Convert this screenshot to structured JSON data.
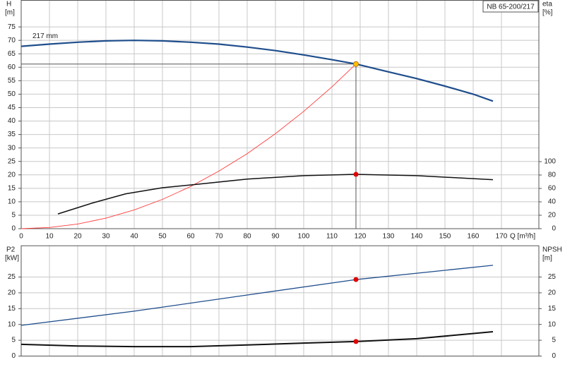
{
  "chart_data": [
    {
      "type": "line",
      "title": "NB 65-200/217",
      "x_label": "Q [m³/h]",
      "y_label": "H",
      "y_unit": "[m]",
      "y2_label": "eta",
      "y2_unit": "[%]",
      "xlim": [
        0,
        183.25
      ],
      "ylim": [
        0,
        85
      ],
      "y2lim": [
        0,
        341
      ],
      "xticks": [
        0,
        10,
        20,
        30,
        40,
        50,
        60,
        70,
        80,
        90,
        100,
        110,
        120,
        130,
        140,
        150,
        160,
        170
      ],
      "yticks": [
        0,
        5,
        10,
        15,
        20,
        25,
        30,
        35,
        40,
        45,
        50,
        55,
        60,
        65,
        70,
        75
      ],
      "y2ticks": [
        0,
        20,
        40,
        60,
        80,
        100
      ],
      "show_xtick_labels": true,
      "grid": true,
      "guide": {
        "x": 118.5,
        "y": 61.2,
        "color": "#555555"
      },
      "series": [
        {
          "name": "217 mm",
          "color": "#1f4e8c",
          "width": 2.2,
          "x": [
            0,
            10,
            20,
            30,
            40,
            50,
            60,
            70,
            80,
            90,
            100,
            110,
            118.5,
            130,
            140,
            150,
            160,
            167
          ],
          "values": [
            67.8,
            68.6,
            69.3,
            69.8,
            70,
            69.8,
            69.3,
            68.6,
            67.5,
            66.2,
            64.6,
            62.8,
            61.2,
            58.3,
            55.8,
            53,
            50,
            47.4
          ]
        },
        {
          "color": "#ff3b3b",
          "width": 0.9,
          "x": [
            0,
            10,
            20,
            30,
            40,
            50,
            60,
            70,
            80,
            90,
            100,
            110,
            118.5
          ],
          "values": [
            0,
            0.44,
            1.74,
            3.92,
            6.97,
            10.9,
            15.7,
            21.4,
            27.9,
            35.3,
            43.6,
            52.7,
            61.2
          ]
        },
        {
          "color": "#111111",
          "width": 1.5,
          "axis": "y2",
          "x": [
            13,
            25,
            37,
            50,
            62,
            80,
            100,
            118.5,
            140,
            167
          ],
          "values": [
            22,
            38,
            52,
            61,
            66,
            74,
            79,
            81,
            79,
            73
          ]
        },
        {
          "color": "#e00000",
          "marker": true,
          "axis": "y2",
          "x": [
            118.5
          ],
          "values": [
            81
          ]
        },
        {
          "color": "#ffc400",
          "marker": true,
          "x": [
            118.5
          ],
          "values": [
            61.2
          ]
        }
      ]
    },
    {
      "type": "line",
      "y_label": "P2",
      "y_unit": "[kW]",
      "y2_label": "NPSH",
      "y2_unit": "[m]",
      "xlim": [
        0,
        183.25
      ],
      "ylim": [
        0,
        35
      ],
      "y2lim": [
        0,
        35
      ],
      "xticks": [
        0,
        10,
        20,
        30,
        40,
        50,
        60,
        70,
        80,
        90,
        100,
        110,
        120,
        130,
        140,
        150,
        160,
        170
      ],
      "yticks": [
        0,
        5,
        10,
        15,
        20,
        25
      ],
      "y2ticks": [
        0,
        5,
        10,
        15,
        20,
        25
      ],
      "show_xtick_labels": false,
      "grid": true,
      "series": [
        {
          "color": "#1f4e8c",
          "width": 1.3,
          "x": [
            0,
            40,
            80,
            118.5,
            167
          ],
          "values": [
            9.7,
            14.2,
            19.3,
            24.2,
            28.7
          ]
        },
        {
          "color": "#111111",
          "width": 2,
          "axis": "y2",
          "x": [
            0,
            20,
            40,
            60,
            80,
            100,
            118.5,
            140,
            167
          ],
          "values": [
            3.7,
            3.2,
            3.0,
            3.0,
            3.5,
            4.1,
            4.6,
            5.5,
            7.7
          ]
        },
        {
          "color": "#e00000",
          "marker": true,
          "x": [
            118.5
          ],
          "values": [
            24.2
          ]
        },
        {
          "color": "#e00000",
          "marker": true,
          "axis": "y2",
          "x": [
            118.5
          ],
          "values": [
            4.6
          ]
        }
      ]
    }
  ]
}
